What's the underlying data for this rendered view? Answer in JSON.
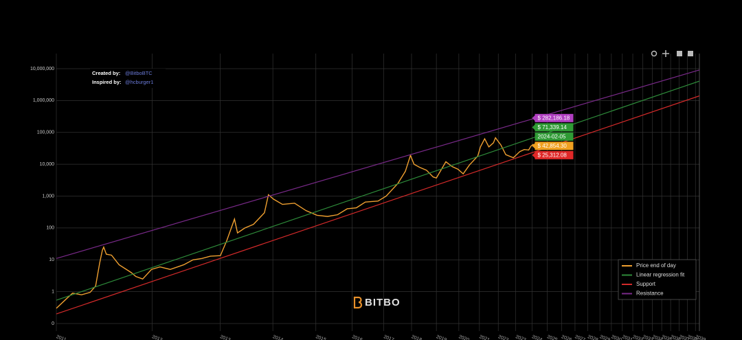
{
  "chart_data": {
    "type": "line",
    "credits": {
      "created_label": "Created by:",
      "created_by": "@BitboBTC",
      "inspired_label": "Inspired by:",
      "inspired_by": "@hcburger1"
    },
    "logo": "BITBO",
    "xscale": "log",
    "yscale": "log",
    "grid": true,
    "legend": "lower right",
    "xlim": [
      728,
      11140
    ],
    "ylim": [
      0.058,
      29800000
    ],
    "yticks": [
      {
        "value": 0.1,
        "label": "0"
      },
      1,
      10,
      100,
      {
        "value": 1000,
        "label": "1,000"
      },
      {
        "value": 10000,
        "label": "10,000"
      },
      {
        "value": 100000,
        "label": "100,000"
      },
      {
        "value": 1000000,
        "label": "1,000,000"
      },
      {
        "value": 10000000,
        "label": "10,000,000"
      }
    ],
    "xticks": [
      {
        "value": 728,
        "label": "2011"
      },
      {
        "value": 1093,
        "label": "2012"
      },
      {
        "value": 1459,
        "label": "2013"
      },
      {
        "value": 1824,
        "label": "2014"
      },
      {
        "value": 2189,
        "label": "2015"
      },
      {
        "value": 2554,
        "label": "2016"
      },
      {
        "value": 2920,
        "label": "2017"
      },
      {
        "value": 3285,
        "label": "2018"
      },
      {
        "value": 3650,
        "label": "2019"
      },
      {
        "value": 4015,
        "label": "2020"
      },
      {
        "value": 4381,
        "label": "2021"
      },
      {
        "value": 4746,
        "label": "2022"
      },
      {
        "value": 5111,
        "label": "2023"
      },
      {
        "value": 5476,
        "label": "2024"
      },
      {
        "value": 5842,
        "label": "2025"
      },
      {
        "value": 6207,
        "label": "2026"
      },
      {
        "value": 6572,
        "label": "2027"
      },
      {
        "value": 6937,
        "label": "2028"
      },
      {
        "value": 7303,
        "label": "2029"
      },
      {
        "value": 7668,
        "label": "2030"
      },
      {
        "value": 8033,
        "label": "2031"
      },
      {
        "value": 8398,
        "label": "2032"
      },
      {
        "value": 8764,
        "label": "2033"
      },
      {
        "value": 9129,
        "label": "2034"
      },
      {
        "value": 9494,
        "label": "2035"
      },
      {
        "value": 9859,
        "label": "2036"
      },
      {
        "value": 10225,
        "label": "2037"
      },
      {
        "value": 10590,
        "label": "2038"
      },
      {
        "value": 10955,
        "label": "2039"
      }
    ],
    "series": [
      {
        "name": "Price end of day",
        "color": "#f0a030",
        "x": [
          728,
          760,
          780,
          810,
          840,
          860,
          875,
          885,
          890,
          900,
          920,
          950,
          1000,
          1020,
          1050,
          1090,
          1130,
          1180,
          1250,
          1300,
          1350,
          1400,
          1460,
          1500,
          1550,
          1570,
          1620,
          1680,
          1760,
          1790,
          1830,
          1900,
          2000,
          2100,
          2200,
          2300,
          2400,
          2500,
          2600,
          2700,
          2850,
          2950,
          3100,
          3200,
          3270,
          3320,
          3400,
          3500,
          3600,
          3650,
          3800,
          3900,
          4000,
          4090,
          4200,
          4350,
          4400,
          4480,
          4560,
          4650,
          4690,
          4800,
          4900,
          5060,
          5200,
          5300,
          5400,
          5450,
          5511
        ],
        "values": [
          0.3,
          0.6,
          0.9,
          0.8,
          0.95,
          1.5,
          8,
          20,
          25,
          15,
          14,
          7,
          4,
          3,
          2.5,
          5,
          6,
          5,
          7,
          10,
          11,
          13,
          13.5,
          40,
          190,
          70,
          100,
          130,
          300,
          1100,
          800,
          550,
          600,
          350,
          250,
          230,
          260,
          400,
          430,
          650,
          700,
          1000,
          2500,
          6000,
          19000,
          10000,
          8000,
          6500,
          4000,
          3700,
          12000,
          8500,
          7000,
          5000,
          9500,
          18000,
          35000,
          63000,
          35000,
          47000,
          68000,
          40000,
          20000,
          16000,
          25000,
          29000,
          28000,
          37000,
          42854.3
        ]
      },
      {
        "name": "Linear regression fit",
        "color": "#2e8b3a",
        "x": [
          728,
          11140
        ],
        "values": [
          0.54,
          4070000
        ]
      },
      {
        "name": "Support",
        "color": "#d42a2a",
        "x": [
          728,
          11140
        ],
        "values": [
          0.2,
          1400000
        ]
      },
      {
        "name": "Resistance",
        "color": "#7a2a8a",
        "x": [
          728,
          11140
        ],
        "values": [
          11,
          9100000
        ]
      }
    ],
    "annotations": [
      {
        "label": "$ 282,186.18",
        "value": 282186.18,
        "color": "#b03fc0"
      },
      {
        "label": "$ 71,339.14",
        "value": 71339.14,
        "color": "#2f9a35"
      },
      {
        "label": "$ 42,854.30",
        "value": 42854.3,
        "color": "#f0a020"
      },
      {
        "label": "$ 25,312.08",
        "value": 25312.08,
        "color": "#e02828"
      }
    ],
    "date_annotation": {
      "label": "2024-02-05",
      "x": 5511,
      "color": "#2f9a35"
    }
  }
}
